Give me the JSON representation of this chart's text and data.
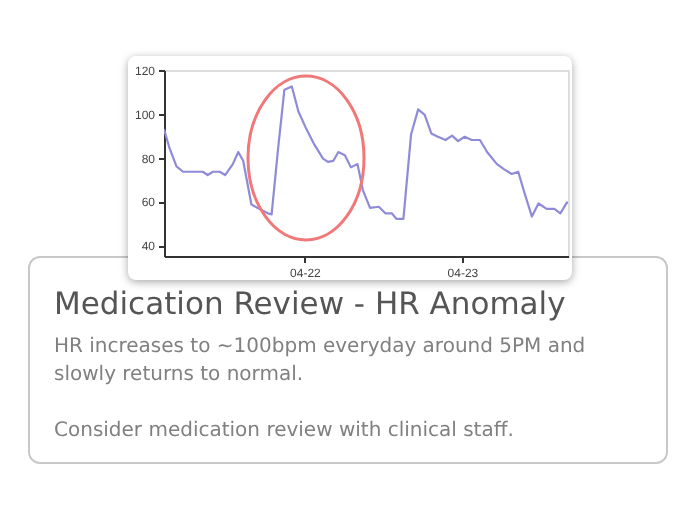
{
  "chart_data": {
    "type": "line",
    "title": "Medication Review - HR Anomaly",
    "annotations": [
      "HR increases to ~100bpm everyday around 5PM and slowly returns to normal.",
      "Consider medication review with clinical staff."
    ],
    "x": [
      "--04-21T02:36",
      "--04-21T03:25",
      "--04-21T04:30",
      "--04-21T05:30",
      "--04-21T07:00",
      "--04-21T08:30",
      "--04-21T09:15",
      "--04-21T10:05",
      "--04-21T11:05",
      "--04-21T11:55",
      "--04-21T13:05",
      "--04-21T13:55",
      "--04-21T14:40",
      "--04-21T15:55",
      "--04-21T17:10",
      "--04-21T18:25",
      "--04-21T19:00",
      "--04-21T20:00",
      "--04-21T20:57",
      "--04-21T22:05",
      "--04-21T23:05",
      "--04-22T00:18",
      "--04-22T01:30",
      "--04-22T02:50",
      "--04-22T03:35",
      "--04-22T04:25",
      "--04-22T05:10",
      "--04-22T06:10",
      "--04-22T07:05",
      "--04-22T08:05",
      "--04-22T08:55",
      "--04-22T10:00",
      "--04-22T11:20",
      "--04-22T12:20",
      "--04-22T13:20",
      "--04-22T14:00",
      "--04-22T15:05",
      "--04-22T16:15",
      "--04-22T17:20",
      "--04-22T18:20",
      "--04-22T19:20",
      "--04-22T20:20",
      "--04-22T21:30",
      "--04-22T22:30",
      "--04-22T23:25",
      "--04-23T00:25",
      "--04-23T01:30",
      "--04-23T02:45",
      "--04-23T03:50",
      "--04-23T05:20",
      "--04-23T06:30",
      "--04-23T07:35",
      "--04-23T08:35",
      "--04-23T09:25",
      "--04-23T10:40",
      "--04-23T11:40",
      "--04-23T12:55",
      "--04-23T14:05",
      "--04-23T15:00",
      "--04-23T16:00",
      "--04-23T16:10"
    ],
    "series": [
      {
        "color": "#8f8bd8",
        "values": [
          93,
          84.5,
          76,
          73.5,
          73.5,
          73.5,
          72,
          73.5,
          73.5,
          72,
          77,
          82.5,
          78.5,
          58.5,
          56.5,
          54.5,
          54,
          84.5,
          111,
          112.5,
          101,
          93,
          86,
          79.5,
          78,
          78.5,
          82.5,
          81,
          75.5,
          77,
          65,
          57,
          57.5,
          54.5,
          54.5,
          52,
          52,
          90.5,
          102,
          99.5,
          91,
          89.5,
          88,
          90,
          87.5,
          89.5,
          88,
          88,
          82.5,
          77,
          74.5,
          72.5,
          73.5,
          65,
          53,
          59,
          56.5,
          56.5,
          54.5,
          59.5,
          59
        ]
      }
    ],
    "xlim": [
      "--04-21T02:36",
      "--04-23T16:10"
    ],
    "xticks": [
      {
        "value": "--04-22",
        "label": "04-22"
      },
      {
        "value": "--04-23",
        "label": "04-23"
      }
    ],
    "ylim": [
      35,
      120
    ],
    "yticks": [
      40,
      60,
      80,
      100,
      120
    ],
    "line_style": "solid"
  }
}
